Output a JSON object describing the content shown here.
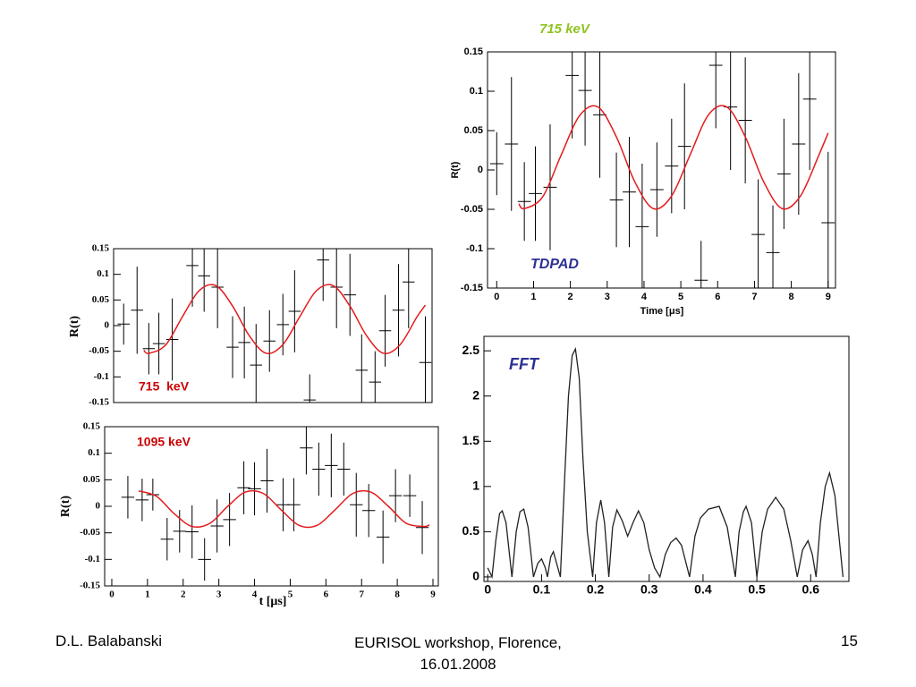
{
  "chart_data": [
    {
      "type": "errorbar",
      "title": "715 keV",
      "annotation": "TDPAD",
      "ylabel": "R(t)",
      "xlabel": "Time [μs]",
      "xlim": [
        -0.25,
        9.2
      ],
      "ylim": [
        -0.15,
        0.15
      ],
      "xticks": [
        0,
        1,
        2,
        3,
        4,
        5,
        6,
        7,
        8,
        9
      ],
      "yticks": [
        -0.15,
        -0.1,
        -0.05,
        0,
        0.05,
        0.1,
        0.15
      ],
      "points": {
        "color": "#000000",
        "xerr": 0.18,
        "x": [
          0,
          0.4,
          0.75,
          1.05,
          1.45,
          2.05,
          2.4,
          2.8,
          3.25,
          3.6,
          3.95,
          4.35,
          4.75,
          5.1,
          5.55,
          5.95,
          6.35,
          6.75,
          7.1,
          7.5,
          7.8,
          8.2,
          8.5,
          9.0
        ],
        "y": [
          0.008,
          0.033,
          -0.04,
          -0.03,
          -0.022,
          0.12,
          0.101,
          0.07,
          -0.038,
          -0.028,
          -0.072,
          -0.025,
          0.005,
          0.03,
          -0.14,
          0.133,
          0.08,
          0.063,
          -0.082,
          -0.105,
          -0.005,
          0.033,
          0.09,
          -0.067
        ],
        "yerr": [
          0.04,
          0.085,
          0.05,
          0.06,
          0.08,
          0.08,
          0.07,
          0.08,
          0.06,
          0.07,
          0.08,
          0.06,
          0.06,
          0.08,
          0.05,
          0.08,
          0.08,
          0.08,
          0.07,
          0.06,
          0.07,
          0.09,
          0.09,
          0.09
        ]
      },
      "fit": {
        "color": "#e41a1c",
        "x": [
          0.6,
          0.75,
          1.25,
          1.75,
          2.25,
          2.75,
          3.25,
          3.75,
          4.25,
          4.75,
          5.25,
          5.75,
          6.25,
          6.75,
          7.25,
          7.75,
          8.25,
          8.75,
          9
        ],
        "y": [
          -0.043,
          -0.049,
          -0.034,
          0.019,
          0.069,
          0.08,
          0.042,
          -0.015,
          -0.049,
          -0.033,
          0.019,
          0.07,
          0.08,
          0.042,
          -0.015,
          -0.049,
          -0.033,
          0.019,
          0.047
        ]
      }
    },
    {
      "type": "errorbar",
      "annotation": "715  keV",
      "ylabel": "R(t)",
      "xlim": [
        -0.3,
        9.2
      ],
      "ylim": [
        -0.15,
        0.15
      ],
      "yticks": [
        -0.15,
        -0.1,
        -0.05,
        0,
        0.05,
        0.1,
        0.15
      ],
      "points": {
        "color": "#000000",
        "xerr": 0.18,
        "x": [
          0,
          0.4,
          0.75,
          1.05,
          1.45,
          2.05,
          2.4,
          2.8,
          3.25,
          3.6,
          3.95,
          4.35,
          4.75,
          5.1,
          5.55,
          5.95,
          6.35,
          6.75,
          7.1,
          7.5,
          7.8,
          8.2,
          8.5,
          9.0
        ],
        "y": [
          0.003,
          0.03,
          -0.045,
          -0.035,
          -0.027,
          0.117,
          0.097,
          0.075,
          -0.042,
          -0.033,
          -0.077,
          -0.03,
          0.002,
          0.028,
          -0.145,
          0.128,
          0.075,
          0.06,
          -0.087,
          -0.11,
          -0.01,
          0.03,
          0.085,
          -0.072
        ],
        "yerr": [
          0.04,
          0.085,
          0.05,
          0.06,
          0.08,
          0.08,
          0.07,
          0.08,
          0.06,
          0.07,
          0.08,
          0.06,
          0.06,
          0.08,
          0.05,
          0.08,
          0.08,
          0.08,
          0.07,
          0.06,
          0.07,
          0.09,
          0.09,
          0.09
        ]
      },
      "fit": {
        "color": "#e41a1c",
        "x": [
          0.6,
          0.75,
          1.25,
          1.75,
          2.25,
          2.75,
          3.25,
          3.75,
          4.25,
          4.75,
          5.25,
          5.75,
          6.25,
          6.75,
          7.25,
          7.75,
          8.25,
          8.75,
          9
        ],
        "y": [
          -0.048,
          -0.054,
          -0.038,
          0.017,
          0.068,
          0.078,
          0.038,
          -0.02,
          -0.054,
          -0.037,
          0.017,
          0.068,
          0.078,
          0.038,
          -0.02,
          -0.054,
          -0.037,
          0.017,
          0.04
        ]
      }
    },
    {
      "type": "errorbar",
      "annotation": "1095 keV",
      "ylabel": "R(t)",
      "xlabel": "t [μs]",
      "xlim": [
        -0.2,
        9.15
      ],
      "ylim": [
        -0.15,
        0.15
      ],
      "xticks": [
        0,
        1,
        2,
        3,
        4,
        5,
        6,
        7,
        8,
        9
      ],
      "yticks": [
        -0.15,
        -0.1,
        -0.05,
        0,
        0.05,
        0.1,
        0.15
      ],
      "points": {
        "color": "#000000",
        "xerr": 0.18,
        "x": [
          0.45,
          0.85,
          1.15,
          1.55,
          1.9,
          2.25,
          2.6,
          2.95,
          3.3,
          3.7,
          4.0,
          4.35,
          4.8,
          5.1,
          5.45,
          5.8,
          6.15,
          6.5,
          6.85,
          7.2,
          7.6,
          7.95,
          8.35,
          8.7
        ],
        "y": [
          0.017,
          0.012,
          0.022,
          -0.062,
          -0.047,
          -0.048,
          -0.1,
          -0.037,
          -0.025,
          0.035,
          0.033,
          0.048,
          0.003,
          0.003,
          0.11,
          0.07,
          0.077,
          0.07,
          0.003,
          -0.008,
          -0.058,
          0.02,
          0.02,
          -0.04
        ],
        "yerr": [
          0.04,
          0.04,
          0.03,
          0.04,
          0.04,
          0.05,
          0.04,
          0.05,
          0.05,
          0.05,
          0.05,
          0.06,
          0.05,
          0.05,
          0.05,
          0.05,
          0.06,
          0.05,
          0.06,
          0.05,
          0.05,
          0.05,
          0.04,
          0.05
        ]
      },
      "fit": {
        "color": "#e41a1c",
        "x": [
          0.75,
          1.25,
          1.75,
          2.25,
          2.75,
          3.25,
          3.75,
          4.25,
          4.75,
          5.25,
          5.75,
          6.25,
          6.75,
          7.25,
          7.75,
          8.25,
          8.75,
          8.9
        ],
        "y": [
          0.029,
          0.019,
          -0.014,
          -0.038,
          -0.032,
          0.0,
          0.027,
          0.024,
          -0.007,
          -0.036,
          -0.036,
          -0.007,
          0.024,
          0.027,
          0.0,
          -0.032,
          -0.038,
          -0.035
        ]
      }
    },
    {
      "type": "line",
      "annotation": "FFT",
      "color": "#222222",
      "xlim": [
        -0.007,
        0.671
      ],
      "ylim": [
        -0.05,
        2.66
      ],
      "xticks": [
        0,
        0.1,
        0.2,
        0.3,
        0.4,
        0.5,
        0.6
      ],
      "yticks": [
        0,
        0.5,
        1,
        1.5,
        2,
        2.5
      ],
      "x": [
        0,
        0.008,
        0.015,
        0.022,
        0.027,
        0.034,
        0.045,
        0.053,
        0.06,
        0.067,
        0.075,
        0.085,
        0.093,
        0.1,
        0.107,
        0.111,
        0.117,
        0.122,
        0.128,
        0.135,
        0.143,
        0.15,
        0.157,
        0.163,
        0.17,
        0.177,
        0.185,
        0.195,
        0.202,
        0.21,
        0.217,
        0.225,
        0.232,
        0.24,
        0.25,
        0.26,
        0.27,
        0.28,
        0.29,
        0.3,
        0.31,
        0.32,
        0.33,
        0.34,
        0.35,
        0.36,
        0.375,
        0.385,
        0.395,
        0.41,
        0.43,
        0.445,
        0.46,
        0.467,
        0.475,
        0.48,
        0.49,
        0.5,
        0.51,
        0.52,
        0.535,
        0.55,
        0.563,
        0.575,
        0.585,
        0.595,
        0.603,
        0.61,
        0.618,
        0.627,
        0.635,
        0.645,
        0.655,
        0.66
      ],
      "y": [
        0.1,
        0,
        0.4,
        0.7,
        0.73,
        0.6,
        0,
        0.5,
        0.72,
        0.75,
        0.55,
        0,
        0.15,
        0.2,
        0.1,
        0,
        0.22,
        0.28,
        0.15,
        0,
        1.1,
        2.0,
        2.45,
        2.52,
        2.2,
        1.3,
        0.5,
        0,
        0.6,
        0.85,
        0.6,
        0,
        0.55,
        0.74,
        0.62,
        0.45,
        0.6,
        0.73,
        0.6,
        0.3,
        0.1,
        0,
        0.25,
        0.38,
        0.43,
        0.35,
        0,
        0.45,
        0.65,
        0.75,
        0.78,
        0.55,
        0,
        0.5,
        0.72,
        0.78,
        0.6,
        0,
        0.5,
        0.75,
        0.88,
        0.75,
        0.4,
        0,
        0.3,
        0.4,
        0.25,
        0,
        0.6,
        1.0,
        1.15,
        0.9,
        0.3,
        0
      ]
    }
  ],
  "footer": {
    "author": "D.L. Balabanski",
    "event": "EURISOL workshop, Florence, 16.01.2008",
    "page": "15"
  }
}
